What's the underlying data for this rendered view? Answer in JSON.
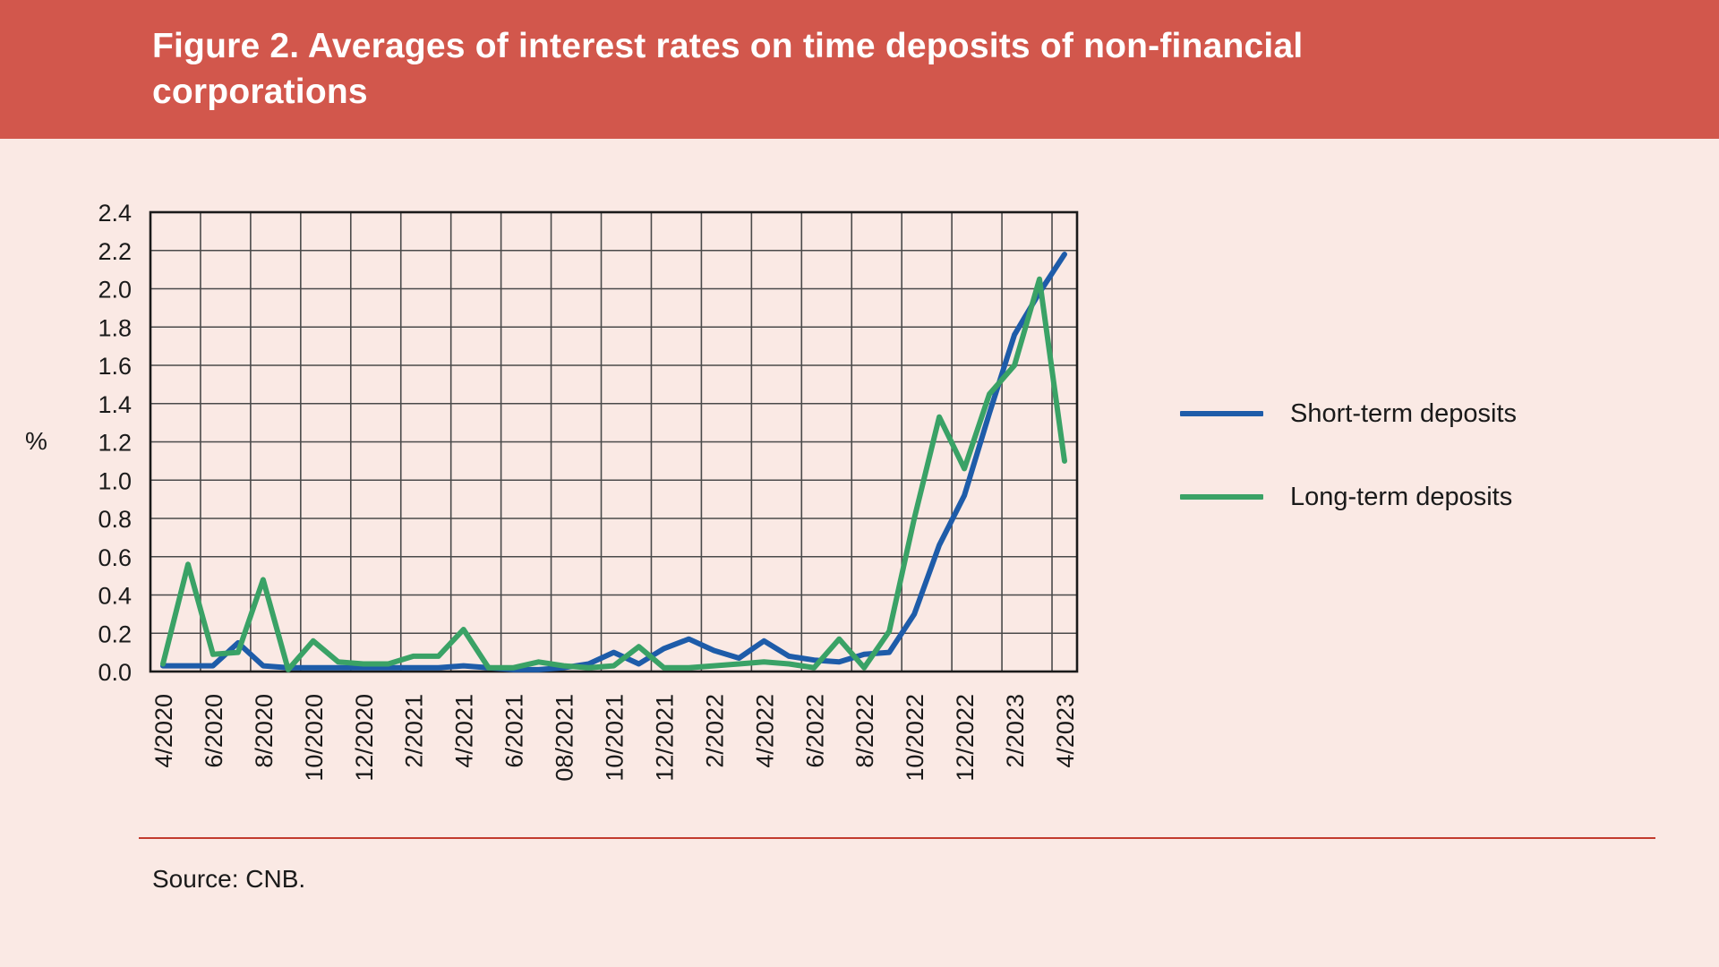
{
  "banner": {
    "title": "Figure 2. Averages of interest rates on time deposits of non-financial corporations"
  },
  "source": {
    "text": "Source: CNB."
  },
  "colors": {
    "banner_red": "#D2574C",
    "page_background": "#FAE9E4",
    "grid_line": "#4A4A4A",
    "axis_border": "#1A1A1A",
    "tick_text": "#1A1A1A",
    "separator_rule": "#C23B2E",
    "short_term_blue": "#1E5CA9",
    "long_term_green": "#3AA266"
  },
  "chart_data": {
    "type": "line",
    "title": "Figure 2. Averages of interest rates on time deposits of non-financial corporations",
    "xlabel": "",
    "ylabel": "%",
    "ylim": [
      0,
      2.4
    ],
    "y_tick_step": 0.2,
    "grid": true,
    "legend_position": "right",
    "categories": [
      "4/2020",
      "5/2020",
      "6/2020",
      "7/2020",
      "8/2020",
      "9/2020",
      "10/2020",
      "11/2020",
      "12/2020",
      "1/2021",
      "2/2021",
      "3/2021",
      "4/2021",
      "5/2021",
      "6/2021",
      "7/2021",
      "8/2021",
      "9/2021",
      "10/2021",
      "11/2021",
      "12/2021",
      "1/2022",
      "2/2022",
      "3/2022",
      "4/2022",
      "5/2022",
      "6/2022",
      "7/2022",
      "8/2022",
      "9/2022",
      "10/2022",
      "11/2022",
      "12/2022",
      "1/2023",
      "2/2023",
      "3/2023",
      "4/2023"
    ],
    "x_tick_labels": [
      "4/2020",
      "6/2020",
      "8/2020",
      "10/2020",
      "12/2020",
      "2/2021",
      "4/2021",
      "6/2021",
      "08/2021",
      "10/2021",
      "12/2021",
      "2/2022",
      "4/2022",
      "6/2022",
      "8/2022",
      "10/2022",
      "12/2022",
      "2/2023",
      "4/2023"
    ],
    "y_tick_labels": [
      "0.0",
      "0.2",
      "0.4",
      "0.6",
      "0.8",
      "1.0",
      "1.2",
      "1.4",
      "1.6",
      "1.8",
      "2.0",
      "2.2",
      "2.4"
    ],
    "series": [
      {
        "name": "Short-term deposits",
        "color": "#1E5CA9",
        "values": [
          0.03,
          0.03,
          0.03,
          0.15,
          0.03,
          0.02,
          0.02,
          0.02,
          0.02,
          0.02,
          0.02,
          0.02,
          0.03,
          0.02,
          0.01,
          0.01,
          0.02,
          0.04,
          0.1,
          0.04,
          0.12,
          0.17,
          0.11,
          0.07,
          0.16,
          0.08,
          0.06,
          0.05,
          0.09,
          0.1,
          0.3,
          0.66,
          0.92,
          1.35,
          1.76,
          1.98,
          2.18
        ]
      },
      {
        "name": "Long-term deposits",
        "color": "#3AA266",
        "values": [
          0.04,
          0.56,
          0.09,
          0.1,
          0.48,
          0.01,
          0.16,
          0.05,
          0.04,
          0.04,
          0.08,
          0.08,
          0.22,
          0.02,
          0.02,
          0.05,
          0.03,
          0.02,
          0.03,
          0.13,
          0.02,
          0.02,
          0.03,
          0.04,
          0.05,
          0.04,
          0.02,
          0.17,
          0.02,
          0.21,
          0.8,
          1.33,
          1.06,
          1.45,
          1.6,
          2.05,
          1.1
        ]
      }
    ]
  }
}
